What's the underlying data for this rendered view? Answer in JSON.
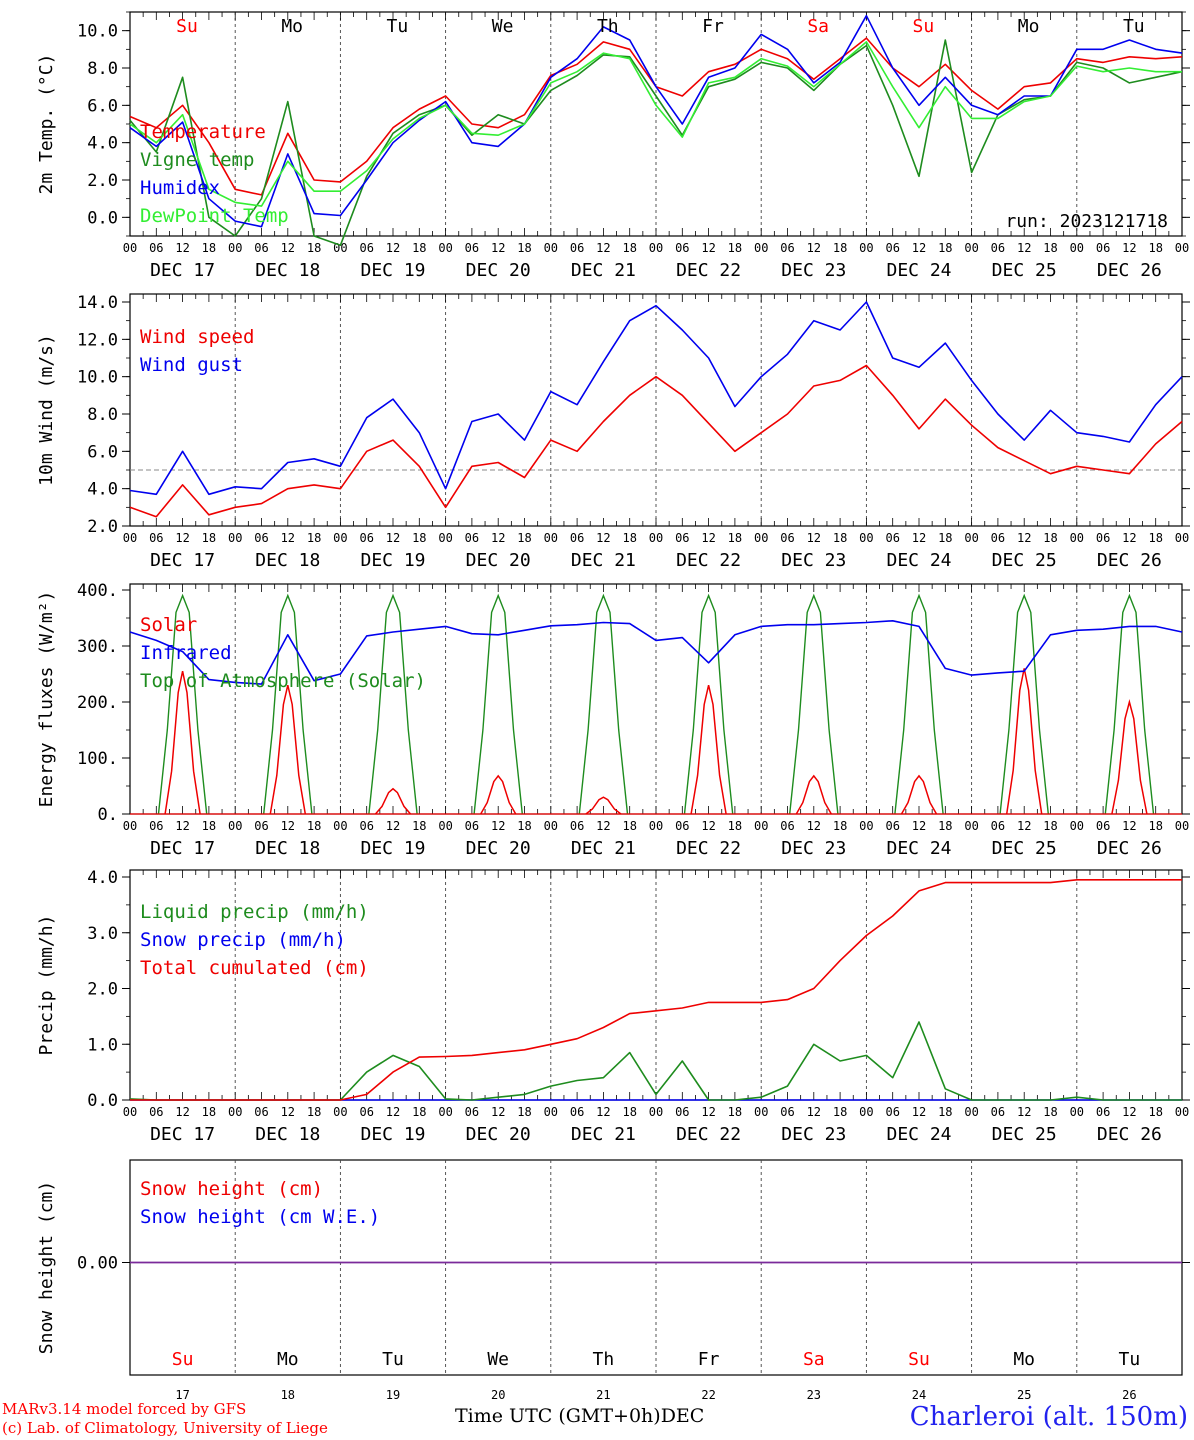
{
  "run_label": "run: 2023121718",
  "day_top_labels": [
    {
      "label": "Su",
      "weekend": true
    },
    {
      "label": "Mo",
      "weekend": false
    },
    {
      "label": "Tu",
      "weekend": false
    },
    {
      "label": "We",
      "weekend": false
    },
    {
      "label": "Th",
      "weekend": false
    },
    {
      "label": "Fr",
      "weekend": false
    },
    {
      "label": "Sa",
      "weekend": true
    },
    {
      "label": "Su",
      "weekend": true
    },
    {
      "label": "Mo",
      "weekend": false
    },
    {
      "label": "Tu",
      "weekend": false
    }
  ],
  "date_labels": [
    "DEC 17",
    "DEC 18",
    "DEC 19",
    "DEC 20",
    "DEC 21",
    "DEC 22",
    "DEC 23",
    "DEC 24",
    "DEC 25",
    "DEC 26"
  ],
  "hour_labels": [
    "00",
    "06",
    "12",
    "18"
  ],
  "bottom_day_numbers": [
    "17",
    "18",
    "19",
    "20",
    "21",
    "22",
    "23",
    "24",
    "25",
    "26"
  ],
  "footer": {
    "credit_line1": "MARv3.14 model forced by GFS",
    "credit_line2": "(c) Lab. of Climatology, University of Liege",
    "xlabel": "Time UTC (GMT+0h)",
    "xlabel_month": "DEC",
    "location": "Charleroi (alt. 150m)"
  },
  "colors": {
    "red": "#ee0000",
    "green": "#1e8c1e",
    "blue": "#0000ee",
    "light_green": "#33ee33",
    "purple": "#7a2a9a",
    "weekend": "#ff0000"
  },
  "chart_data": [
    {
      "type": "line",
      "ylabel": "2m Temp. (°C)",
      "ylim": [
        -1,
        11
      ],
      "yticks": [
        0,
        2,
        4,
        6,
        8,
        10
      ],
      "ytick_labels": [
        "0.0",
        "2.0",
        "4.0",
        "6.0",
        "8.0",
        "10.0"
      ],
      "x_hours": [
        0,
        6,
        12,
        18,
        24,
        30,
        36,
        42,
        48,
        54,
        60,
        66,
        72,
        78,
        84,
        90,
        96,
        102,
        108,
        114,
        120,
        126,
        132,
        138,
        144,
        150,
        156,
        162,
        168,
        174,
        180,
        186,
        192,
        198,
        204,
        210,
        216,
        222,
        228,
        234,
        240
      ],
      "series": [
        {
          "name": "Temperature",
          "color": "red",
          "values": [
            5.4,
            4.8,
            6.0,
            4.0,
            1.5,
            1.2,
            4.5,
            2.0,
            1.9,
            3.0,
            4.8,
            5.8,
            6.5,
            5.0,
            4.8,
            5.5,
            7.6,
            8.2,
            9.4,
            9.0,
            7.0,
            6.5,
            7.8,
            8.2,
            9.0,
            8.5,
            7.4,
            8.5,
            9.6,
            8.0,
            7.0,
            8.2,
            6.8,
            5.8,
            7.0,
            7.2,
            8.5,
            8.3,
            8.6,
            8.5,
            8.6
          ]
        },
        {
          "name": "Vigne temp",
          "color": "green",
          "values": [
            5.2,
            3.5,
            7.5,
            0.0,
            -1.0,
            1.0,
            6.2,
            -1.0,
            -1.5,
            2.2,
            4.5,
            5.5,
            6.0,
            4.4,
            5.5,
            5.0,
            6.8,
            7.6,
            8.7,
            8.6,
            6.5,
            4.4,
            7.0,
            7.4,
            8.3,
            8.0,
            6.8,
            8.2,
            9.2,
            6.0,
            2.2,
            9.5,
            2.4,
            5.5,
            6.3,
            6.5,
            8.3,
            8.0,
            7.2,
            7.5,
            7.8
          ]
        },
        {
          "name": "Humidex",
          "color": "blue",
          "values": [
            4.8,
            3.8,
            5.1,
            1.0,
            -0.2,
            -0.5,
            3.4,
            0.2,
            0.1,
            2.0,
            4.0,
            5.2,
            6.2,
            4.0,
            3.8,
            5.0,
            7.5,
            8.5,
            10.2,
            9.5,
            7.0,
            5.0,
            7.5,
            8.0,
            9.8,
            9.0,
            7.2,
            8.3,
            10.8,
            8.0,
            6.0,
            7.5,
            6.0,
            5.5,
            6.5,
            6.5,
            9.0,
            9.0,
            9.5,
            9.0,
            8.8
          ]
        },
        {
          "name": "DewPoint Temp",
          "color": "light_green",
          "values": [
            5.0,
            4.0,
            5.5,
            1.5,
            0.8,
            0.6,
            3.0,
            1.4,
            1.4,
            2.5,
            4.2,
            5.3,
            6.0,
            4.5,
            4.4,
            5.0,
            7.2,
            7.8,
            8.8,
            8.5,
            6.0,
            4.3,
            7.2,
            7.5,
            8.5,
            8.1,
            7.0,
            8.2,
            9.4,
            7.0,
            4.8,
            7.0,
            5.3,
            5.3,
            6.2,
            6.5,
            8.1,
            7.8,
            8.0,
            7.8,
            7.8
          ]
        }
      ]
    },
    {
      "type": "line",
      "ylabel": "10m Wind (m/s)",
      "ylim": [
        2,
        14
      ],
      "yticks": [
        2,
        4,
        6,
        8,
        10,
        12,
        14
      ],
      "ytick_labels": [
        "2.0",
        "4.0",
        "6.0",
        "8.0",
        "10.0",
        "12.0",
        "14.0"
      ],
      "reference_line": 5,
      "x_hours": [
        0,
        6,
        12,
        18,
        24,
        30,
        36,
        42,
        48,
        54,
        60,
        66,
        72,
        78,
        84,
        90,
        96,
        102,
        108,
        114,
        120,
        126,
        132,
        138,
        144,
        150,
        156,
        162,
        168,
        174,
        180,
        186,
        192,
        198,
        204,
        210,
        216,
        222,
        228,
        234,
        240
      ],
      "series": [
        {
          "name": "Wind speed",
          "color": "red",
          "values": [
            3.0,
            2.5,
            4.2,
            2.6,
            3.0,
            3.2,
            4.0,
            4.2,
            4.0,
            6.0,
            6.6,
            5.2,
            3.0,
            5.2,
            5.4,
            4.6,
            6.6,
            6.0,
            7.6,
            9.0,
            10.0,
            9.0,
            7.5,
            6.0,
            7.0,
            8.0,
            9.5,
            9.8,
            10.6,
            9.0,
            7.2,
            8.8,
            7.4,
            6.2,
            5.5,
            4.8,
            5.2,
            5.0,
            4.8,
            6.4,
            7.6
          ]
        },
        {
          "name": "Wind gust",
          "color": "blue",
          "values": [
            3.9,
            3.7,
            6.0,
            3.7,
            4.1,
            4.0,
            5.4,
            5.6,
            5.2,
            7.8,
            8.8,
            7.0,
            4.0,
            7.6,
            8.0,
            6.6,
            9.2,
            8.5,
            10.8,
            13.0,
            13.8,
            12.5,
            11.0,
            8.4,
            10.0,
            11.2,
            13.0,
            12.5,
            14.0,
            11.0,
            10.5,
            11.8,
            9.8,
            8.0,
            6.6,
            8.2,
            7.0,
            6.8,
            6.5,
            8.5,
            10.0
          ]
        }
      ]
    },
    {
      "type": "line",
      "ylabel": "Energy fluxes (W/m²)",
      "ylim": [
        0,
        400
      ],
      "yticks": [
        0,
        100,
        200,
        300,
        400
      ],
      "ytick_labels": [
        "0.",
        "100.",
        "200.",
        "300.",
        "400."
      ],
      "x_hours": [
        0,
        6,
        12,
        18,
        24,
        30,
        36,
        42,
        48,
        54,
        60,
        66,
        72,
        78,
        84,
        90,
        96,
        102,
        108,
        114,
        120,
        126,
        132,
        138,
        144,
        150,
        156,
        162,
        168,
        174,
        180,
        186,
        192,
        198,
        204,
        210,
        216,
        222,
        228,
        234,
        240
      ],
      "series": [
        {
          "name": "Solar",
          "color": "red",
          "peaks": [
            255,
            230,
            45,
            68,
            30,
            230,
            68,
            68,
            260,
            200
          ]
        },
        {
          "name": "Infrared",
          "color": "blue",
          "values": [
            325,
            310,
            290,
            240,
            235,
            232,
            320,
            238,
            250,
            318,
            325,
            330,
            335,
            322,
            320,
            328,
            336,
            338,
            342,
            340,
            310,
            315,
            270,
            320,
            335,
            338,
            338,
            340,
            342,
            345,
            335,
            260,
            248,
            252,
            255,
            320,
            328,
            330,
            335,
            335,
            325
          ]
        },
        {
          "name": "Top of Atmosphere (Solar)",
          "color": "green",
          "peaks": [
            390,
            390,
            390,
            390,
            390,
            390,
            390,
            390,
            390,
            390
          ]
        }
      ]
    },
    {
      "type": "line",
      "ylabel": "Precip (mm/h)",
      "ylim": [
        0,
        4
      ],
      "yticks": [
        0,
        1,
        2,
        3,
        4
      ],
      "ytick_labels": [
        "0.0",
        "1.0",
        "2.0",
        "3.0",
        "4.0"
      ],
      "x_hours": [
        0,
        6,
        12,
        18,
        24,
        30,
        36,
        42,
        48,
        54,
        60,
        66,
        72,
        78,
        84,
        90,
        96,
        102,
        108,
        114,
        120,
        126,
        132,
        138,
        144,
        150,
        156,
        162,
        168,
        174,
        180,
        186,
        192,
        198,
        204,
        210,
        216,
        222,
        228,
        234,
        240
      ],
      "series": [
        {
          "name": "Liquid precip (mm/h)",
          "color": "green",
          "values": [
            0.02,
            0,
            0,
            0,
            0,
            0,
            0,
            0,
            0,
            0.5,
            0.8,
            0.6,
            0.02,
            0,
            0.05,
            0.1,
            0.25,
            0.35,
            0.4,
            0.85,
            0.1,
            0.7,
            0,
            0,
            0.05,
            0.25,
            1.0,
            0.7,
            0.8,
            0.4,
            1.4,
            0.2,
            0,
            0,
            0,
            0,
            0.05,
            0,
            0,
            0,
            0
          ]
        },
        {
          "name": "Snow precip (mm/h)",
          "color": "blue",
          "values": [
            0,
            0,
            0,
            0,
            0,
            0,
            0,
            0,
            0,
            0,
            0,
            0,
            0,
            0,
            0,
            0,
            0,
            0,
            0,
            0,
            0,
            0,
            0,
            0,
            0,
            0,
            0,
            0,
            0,
            0,
            0,
            0,
            0,
            0,
            0,
            0,
            0,
            0,
            0,
            0,
            0
          ]
        },
        {
          "name": "Total cumulated (cm)",
          "color": "red",
          "values": [
            0,
            0,
            0,
            0,
            0,
            0,
            0,
            0,
            0,
            0.1,
            0.5,
            0.77,
            0.78,
            0.8,
            0.85,
            0.9,
            1.0,
            1.1,
            1.3,
            1.55,
            1.6,
            1.65,
            1.75,
            1.75,
            1.75,
            1.8,
            2.0,
            2.5,
            2.95,
            3.3,
            3.75,
            3.9,
            3.9,
            3.9,
            3.9,
            3.9,
            3.95,
            3.95,
            3.95,
            3.95,
            3.95
          ]
        }
      ]
    },
    {
      "type": "line",
      "ylabel": "Snow height (cm)",
      "yticks": [
        0
      ],
      "ytick_labels": [
        "0.00"
      ],
      "series": [
        {
          "name": "Snow height (cm)",
          "color": "red",
          "constant": 0
        },
        {
          "name": "Snow height (cm W.E.)",
          "color": "blue",
          "constant": 0
        }
      ]
    }
  ]
}
